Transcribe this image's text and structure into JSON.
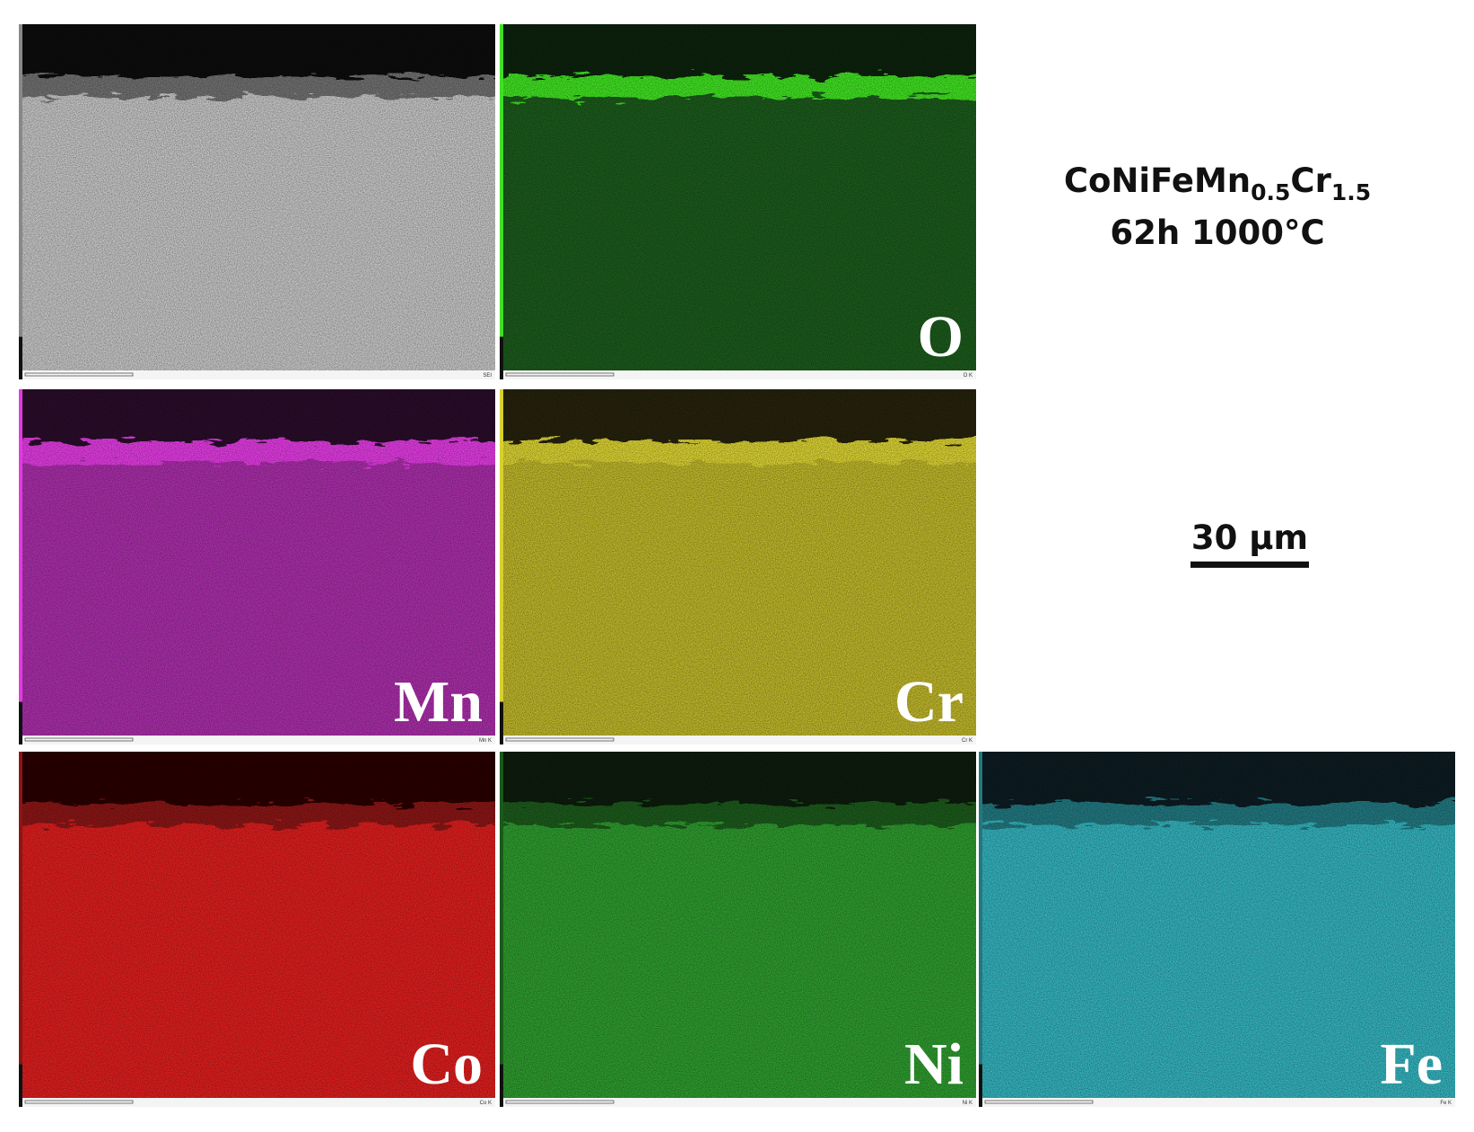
{
  "figure": {
    "formula": {
      "parts": [
        "CoNiFeMn",
        "0.5",
        "Cr",
        "1.5"
      ]
    },
    "condition": "62h 1000°C",
    "scale_bar": "30 µm",
    "panels": [
      {
        "footer": "SEI",
        "color": "#c4c4c4",
        "band": "#6f6f6f",
        "top": "#111111"
      },
      {
        "label": "O",
        "footer": "O K",
        "color": "#1c5a1c",
        "band": "#3fe024",
        "top": "#0a200a"
      },
      {
        "label": "Mn",
        "footer": "Mn K",
        "color": "#a82ea8",
        "band": "#e03ae0",
        "top": "#2a0a2a"
      },
      {
        "label": "Cr",
        "footer": "Cr K",
        "color": "#bdb52a",
        "band": "#d8d030",
        "top": "#252408"
      },
      {
        "label": "Co",
        "footer": "Co K",
        "color": "#dc1e1e",
        "band": "#8a1616",
        "top": "#2a0606"
      },
      {
        "label": "Ni",
        "footer": "Ni K",
        "color": "#2e9a2e",
        "band": "#1a5a1a",
        "top": "#081e08"
      },
      {
        "label": "Fe",
        "footer": "Fe K",
        "color": "#34b2bc",
        "band": "#237880",
        "top": "#071e20"
      }
    ]
  }
}
